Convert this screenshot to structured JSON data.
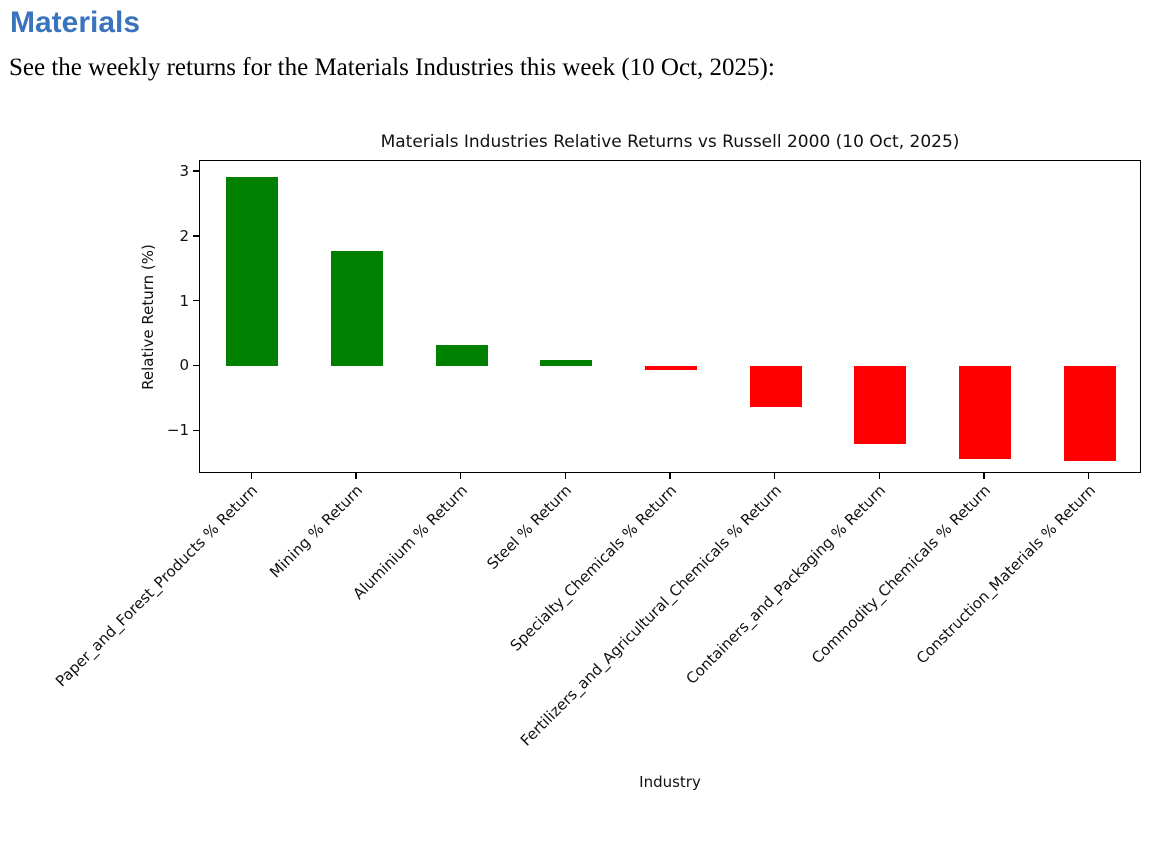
{
  "document": {
    "heading": "Materials",
    "intro": "See the weekly returns for the Materials Industries this week (10 Oct, 2025):"
  },
  "colors": {
    "heading_blue": "#3A74BC",
    "bar_positive": "#008000",
    "bar_negative": "#FF0000",
    "axis": "#000000"
  },
  "chart_data": {
    "type": "bar",
    "title": "Materials Industries Relative Returns vs Russell 2000 (10 Oct, 2025)",
    "xlabel": "Industry",
    "ylabel": "Relative Return (%)",
    "categories": [
      "Paper_and_Forest_Products % Return",
      "Mining % Return",
      "Aluminium % Return",
      "Steel % Return",
      "Specialty_Chemicals % Return",
      "Fertilizers_and_Agricultural_Chemicals % Return",
      "Containers_and_Packaging % Return",
      "Commodity_Chemicals % Return",
      "Construction_Materials % Return"
    ],
    "values": [
      2.92,
      1.78,
      0.33,
      0.1,
      -0.05,
      -0.63,
      -1.2,
      -1.43,
      -1.46
    ],
    "ylim": [
      -1.66,
      3.17
    ],
    "y_ticks": [
      {
        "value": 3,
        "label": "3"
      },
      {
        "value": 2,
        "label": "2"
      },
      {
        "value": 1,
        "label": "1"
      },
      {
        "value": 0,
        "label": "0"
      },
      {
        "value": -1,
        "label": "−1"
      }
    ],
    "bar_width_fraction": 0.5,
    "x_tick_rotation_deg": 45,
    "grid": false,
    "legend": false
  }
}
